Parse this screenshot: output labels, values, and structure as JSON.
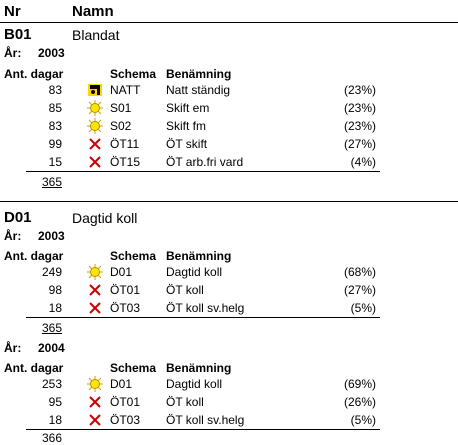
{
  "header": {
    "nr": "Nr",
    "namn": "Namn"
  },
  "labels": {
    "ar": "År:",
    "ant_dagar": "Ant. dagar",
    "schema": "Schema",
    "benamning": "Benämning"
  },
  "groups": [
    {
      "code": "B01",
      "name": "Blandat",
      "years": [
        {
          "year": "2003",
          "rows": [
            {
              "days": "83",
              "icon": "moon-icon",
              "schema": "NATT",
              "benamning": "Natt ständig",
              "pct": "(23%)"
            },
            {
              "days": "85",
              "icon": "sun-icon",
              "schema": "S01",
              "benamning": "Skift em",
              "pct": "(23%)"
            },
            {
              "days": "83",
              "icon": "sun-icon",
              "schema": "S02",
              "benamning": "Skift fm",
              "pct": "(23%)"
            },
            {
              "days": "99",
              "icon": "cross-icon",
              "schema": "ÖT11",
              "benamning": "ÖT skift",
              "pct": "(27%)"
            },
            {
              "days": "15",
              "icon": "cross-icon",
              "schema": "ÖT15",
              "benamning": "ÖT arb.fri vard",
              "pct": "(4%)"
            }
          ],
          "total": "365"
        }
      ]
    },
    {
      "code": "D01",
      "name": "Dagtid koll",
      "years": [
        {
          "year": "2003",
          "rows": [
            {
              "days": "249",
              "icon": "sun-icon",
              "schema": "D01",
              "benamning": "Dagtid koll",
              "pct": "(68%)"
            },
            {
              "days": "98",
              "icon": "cross-icon",
              "schema": "ÖT01",
              "benamning": "ÖT koll",
              "pct": "(27%)"
            },
            {
              "days": "18",
              "icon": "cross-icon",
              "schema": "ÖT03",
              "benamning": "ÖT koll sv.helg",
              "pct": "(5%)"
            }
          ],
          "total": "365"
        },
        {
          "year": "2004",
          "rows": [
            {
              "days": "253",
              "icon": "sun-icon",
              "schema": "D01",
              "benamning": "Dagtid koll",
              "pct": "(69%)"
            },
            {
              "days": "95",
              "icon": "cross-icon",
              "schema": "ÖT01",
              "benamning": "ÖT koll",
              "pct": "(26%)"
            },
            {
              "days": "18",
              "icon": "cross-icon",
              "schema": "ÖT03",
              "benamning": "ÖT koll sv.helg",
              "pct": "(5%)"
            }
          ],
          "total": "366"
        }
      ]
    }
  ]
}
